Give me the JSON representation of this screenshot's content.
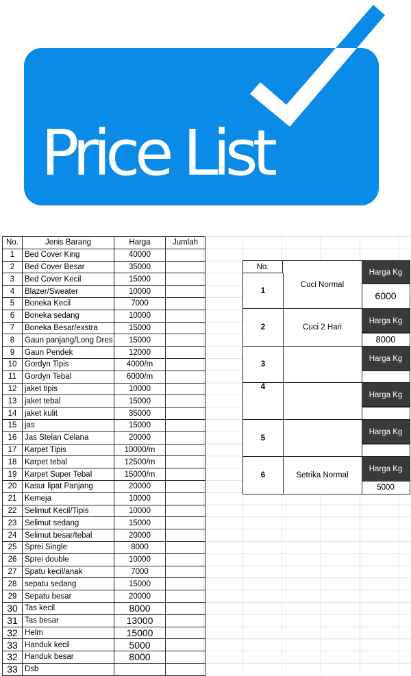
{
  "logo": {
    "title": "Price List",
    "brand_color": "#0a8be8"
  },
  "items_table": {
    "headers": [
      "No.",
      "Jenis Barang",
      "Harga",
      "Jumlah"
    ],
    "rows": [
      [
        "1",
        "Bed Cover King",
        "40000",
        ""
      ],
      [
        "2",
        "Bed Cover Besar",
        "35000",
        ""
      ],
      [
        "3",
        "Bed Cover Kecil",
        "15000",
        ""
      ],
      [
        "4",
        "Blazer/Sweater",
        "10000",
        ""
      ],
      [
        "5",
        "Boneka Kecil",
        "7000",
        ""
      ],
      [
        "6",
        "Boneka sedang",
        "10000",
        ""
      ],
      [
        "7",
        "Boneka Besar/exstra",
        "15000",
        ""
      ],
      [
        "8",
        "Gaun panjang/Long Dres",
        "15000",
        ""
      ],
      [
        "9",
        "Gaun Pendek",
        "12000",
        ""
      ],
      [
        "10",
        "Gordyn Tipis",
        "4000/m",
        ""
      ],
      [
        "11",
        "Gordyn Tebal",
        "6000/m",
        ""
      ],
      [
        "12",
        "jaket tipis",
        "10000",
        ""
      ],
      [
        "13",
        "jaket tebal",
        "15000",
        ""
      ],
      [
        "14",
        "jaket kulit",
        "35000",
        ""
      ],
      [
        "15",
        "jas",
        "15000",
        ""
      ],
      [
        "16",
        "Jas Stelan Celana",
        "20000",
        ""
      ],
      [
        "17",
        "Karpet Tipis",
        "10000/m",
        ""
      ],
      [
        "18",
        "Karpet tebal",
        "12500/m",
        ""
      ],
      [
        "19",
        "Karpet Super Tebal",
        "15000/m",
        ""
      ],
      [
        "20",
        "Kasur lipat Panjang",
        "20000",
        ""
      ],
      [
        "21",
        "Kemeja",
        "10000",
        ""
      ],
      [
        "22",
        "Selimut Kecil/Tipis",
        "10000",
        ""
      ],
      [
        "23",
        "Selimut sedang",
        "15000",
        ""
      ],
      [
        "24",
        "Selimut besar/tebal",
        "20000",
        ""
      ],
      [
        "25",
        "Sprei Single",
        "8000",
        ""
      ],
      [
        "26",
        "Sprei double",
        "10000",
        ""
      ],
      [
        "27",
        "Spatu kecil/anak",
        "7000",
        ""
      ],
      [
        "28",
        "sepatu sedang",
        "15000",
        ""
      ],
      [
        "29",
        "Sepatu besar",
        "20000",
        ""
      ],
      [
        "30",
        "Tas kecil",
        "8000",
        ""
      ],
      [
        "31",
        "Tas besar",
        "13000",
        ""
      ],
      [
        "32",
        "Helm",
        "15000",
        ""
      ],
      [
        "33",
        "Handuk kecil",
        "5000",
        ""
      ],
      [
        "32",
        "Handuk besar",
        "8000",
        ""
      ],
      [
        "33",
        "Dsb",
        "",
        ""
      ]
    ]
  },
  "services": {
    "no_header": "No.",
    "blocks": [
      {
        "no": "1",
        "name": "Cuci Normal",
        "price_label": "Harga Kg",
        "price": "6000"
      },
      {
        "no": "2",
        "name": "Cuci 2 Hari",
        "price_label": "Harga Kg",
        "price": "8000"
      },
      {
        "no": "3",
        "name": "",
        "price_label": "Harga Kg",
        "price": ""
      },
      {
        "no": "4",
        "name": "",
        "price_label": "Harga Kg",
        "price": ""
      },
      {
        "no": "5",
        "name": "",
        "price_label": "Harga Kg",
        "price": ""
      },
      {
        "no": "6",
        "name": "Setrika Normal",
        "price_label": "Harga Kg",
        "price": "5000"
      }
    ]
  }
}
